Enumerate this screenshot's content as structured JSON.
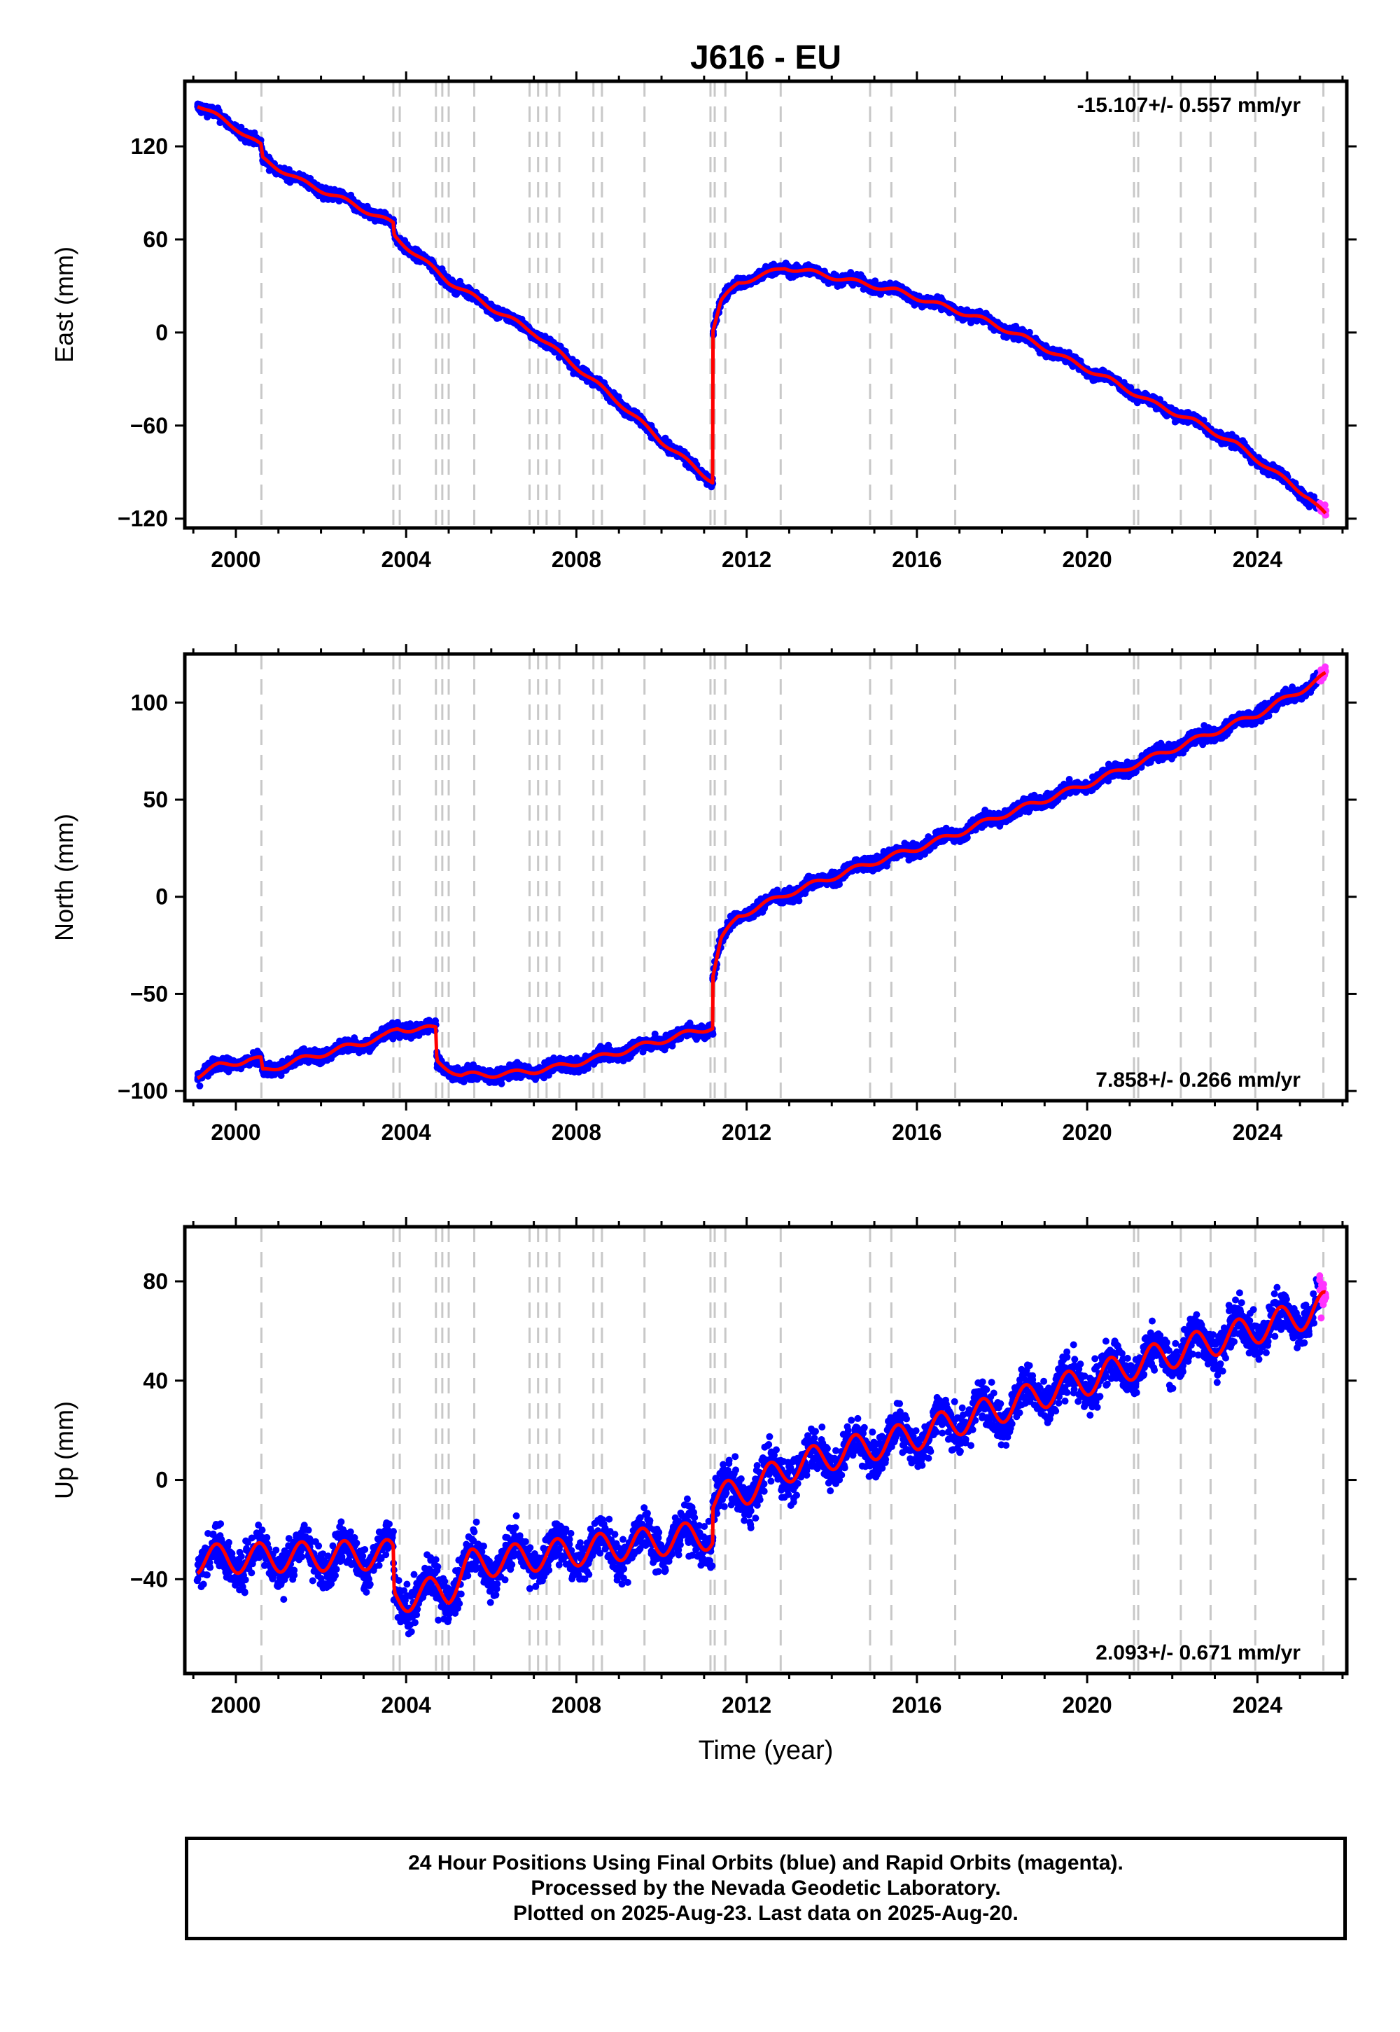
{
  "chart_data": {
    "title": "J616 - EU",
    "type": "scatter",
    "xlabel": "Time (year)",
    "xlim": [
      1998.8,
      2026.1
    ],
    "x_ticks": [
      2000,
      2004,
      2008,
      2012,
      2016,
      2020,
      2024
    ],
    "colors": {
      "final_orbits": "#0000ff",
      "rapid_orbits": "#ff33ff",
      "model": "#ff0000",
      "events": "#c8c8c8"
    },
    "event_lines": [
      2000.6,
      2003.7,
      2003.85,
      2004.7,
      2004.85,
      2005.0,
      2005.6,
      2006.9,
      2007.1,
      2007.3,
      2007.6,
      2008.4,
      2008.6,
      2009.6,
      2011.15,
      2011.25,
      2011.5,
      2012.8,
      2014.9,
      2015.4,
      2016.9,
      2021.1,
      2021.2,
      2022.2,
      2022.9,
      2023.95,
      2025.55
    ],
    "panels": [
      {
        "id": "east",
        "ylabel": "East (mm)",
        "ylim": [
          -126,
          162
        ],
        "y_ticks": [
          -120,
          -60,
          0,
          60,
          120
        ],
        "y_tick_labels": [
          "−120",
          "−60",
          "0",
          "60",
          "120"
        ],
        "rate": "-15.107+/- 0.557 mm/yr",
        "rate_position": "top-right",
        "noise": 2.5,
        "series": [
          {
            "x": [
              1999.1,
              2000.0,
              2000.6,
              2000.62,
              2001.5,
              2002.5,
              2003.7,
              2003.72,
              2005.0,
              2006.0,
              2007.0,
              2008.0,
              2009.0,
              2010.0,
              2011.2
            ],
            "y": [
              147,
              132,
              120,
              112,
              98,
              86,
              70,
              62,
              33,
              16,
              0,
              -22,
              -45,
              -70,
              -96
            ]
          },
          {
            "x": [
              2011.21,
              2011.4,
              2011.8,
              2012.5,
              2012.9,
              2013.5,
              2014.5,
              2015.5,
              2016.5,
              2017.5,
              2018.5,
              2019.5,
              2020.5,
              2021.5,
              2022.5,
              2023.5,
              2024.5,
              2025.2,
              2025.6
            ],
            "y": [
              2,
              20,
              32,
              38,
              42,
              39,
              33,
              27,
              18,
              9,
              -3,
              -17,
              -30,
              -45,
              -57,
              -72,
              -92,
              -106,
              -118
            ]
          }
        ]
      },
      {
        "id": "north",
        "ylabel": "North (mm)",
        "ylim": [
          -105,
          125
        ],
        "y_ticks": [
          -100,
          -50,
          0,
          50,
          100
        ],
        "y_tick_labels": [
          "−100",
          "−50",
          "0",
          "50",
          "100"
        ],
        "rate": "7.858+/- 0.266 mm/yr",
        "rate_position": "bottom-right",
        "noise": 2.5,
        "series": [
          {
            "x": [
              1999.1,
              1999.6,
              2000.3,
              2000.6,
              2000.62,
              2001.5,
              2002.5,
              2003.5,
              2003.8,
              2004.7,
              2004.72,
              2005.3,
              2006.5,
              2007.5,
              2008.5,
              2009.5,
              2010.5,
              2011.2
            ],
            "y": [
              -92,
              -87,
              -84,
              -84,
              -90,
              -84,
              -78,
              -72,
              -68,
              -68,
              -85,
              -92,
              -91,
              -88,
              -83,
              -77,
              -71,
              -67
            ]
          },
          {
            "x": [
              2011.21,
              2011.4,
              2011.8,
              2012.3,
              2013.0,
              2014.0,
              2015.0,
              2016.0,
              2017.0,
              2018.0,
              2019.0,
              2020.0,
              2021.0,
              2022.0,
              2023.0,
              2024.0,
              2025.0,
              2025.6
            ],
            "y": [
              -40,
              -22,
              -10,
              -5,
              2,
              10,
              18,
              25,
              33,
              42,
              50,
              58,
              67,
              76,
              85,
              94,
              106,
              114
            ]
          }
        ]
      },
      {
        "id": "up",
        "ylabel": "Up (mm)",
        "ylim": [
          -78,
          102
        ],
        "y_ticks": [
          -40,
          0,
          40,
          80
        ],
        "y_tick_labels": [
          "−40",
          "0",
          "40",
          "80"
        ],
        "rate": "2.093+/- 0.671 mm/yr",
        "rate_position": "bottom-right",
        "noise": 6,
        "seasonal_amplitude": 6,
        "series": [
          {
            "x": [
              1999.1,
              2003.7,
              2003.72,
              2005.0,
              2005.5,
              2011.2
            ],
            "y": [
              -32,
              -30,
              -48,
              -44,
              -34,
              -22
            ]
          },
          {
            "x": [
              2011.21,
              2012.0,
              2013.0,
              2014.0,
              2015.0,
              2016.0,
              2017.0,
              2018.0,
              2019.0,
              2020.0,
              2021.0,
              2022.0,
              2023.0,
              2024.0,
              2025.0,
              2025.6
            ],
            "y": [
              -8,
              -4,
              5,
              10,
              14,
              18,
              24,
              29,
              35,
              40,
              46,
              51,
              56,
              61,
              66,
              70
            ]
          }
        ]
      }
    ]
  },
  "footer": {
    "line1": "24 Hour Positions Using Final Orbits (blue) and Rapid Orbits (magenta).",
    "line2": "Processed by the Nevada Geodetic Laboratory.",
    "line3": "Plotted on 2025-Aug-23. Last data on 2025-Aug-20."
  }
}
